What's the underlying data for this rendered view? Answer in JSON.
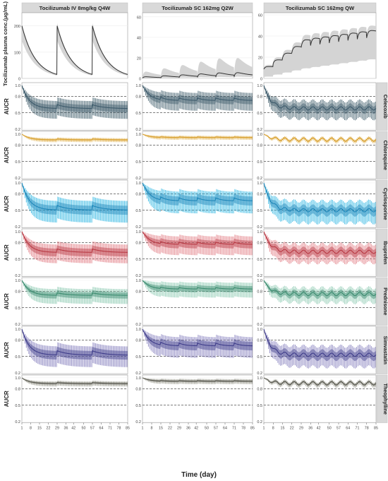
{
  "figure": {
    "x_axis_title": "Time (day)",
    "top_y_axis_title": "Tocilizumab plasma conc.(μg/mL)",
    "row_y_axis_title": "AUCR",
    "x_ticks": [
      1,
      8,
      15,
      22,
      29,
      36,
      42,
      50,
      57,
      64,
      71,
      78,
      85
    ],
    "x_range": [
      1,
      85
    ],
    "columns": [
      {
        "title": "Tocilizumab IV 8mg/kg Q4W",
        "dose_times": [
          1,
          29,
          57
        ],
        "conc_ylim": [
          0,
          250
        ],
        "conc_ticks": [
          0,
          100,
          200
        ],
        "peak": 200,
        "trough": 15,
        "peak_hi": 210
      },
      {
        "title": "Tocilizumab SC 162mg Q2W",
        "dose_times": [
          1,
          15,
          29,
          43,
          57,
          71
        ],
        "conc_ylim": [
          0,
          64
        ],
        "conc_ticks": [
          0,
          20,
          40,
          60
        ],
        "peak": 6,
        "trough": 1,
        "peak_hi": 58
      },
      {
        "title": "Tocilizumab SC 162mg QW",
        "dose_times": [
          1,
          8,
          15,
          22,
          29,
          36,
          43,
          50,
          57,
          64,
          71,
          78
        ],
        "conc_ylim": [
          0,
          62
        ],
        "conc_ticks": [
          0,
          20,
          40,
          60
        ],
        "peak": 33,
        "trough": 25,
        "peak_hi": 58
      }
    ],
    "aucr_ticks": [
      0.2,
      0.5,
      0.8,
      1.0
    ],
    "aucr_ylim": [
      0.18,
      1.05
    ],
    "dashed_reference_lines": [
      0.5,
      0.8
    ],
    "drugs": [
      {
        "name": "Celecoxib",
        "color": "#3d5a6b",
        "band_color": "#2f4f5e",
        "effect": [
          0.4,
          0.26,
          0.42
        ],
        "spread": 0.18
      },
      {
        "name": "Chloroquine",
        "color": "#d9a233",
        "band_color": "#e0b04a",
        "effect": [
          0.1,
          0.06,
          0.1
        ],
        "spread": 0.04
      },
      {
        "name": "Cyclosporine",
        "color": "#1f86b8",
        "band_color": "#1cb0e0",
        "effect": [
          0.47,
          0.31,
          0.5
        ],
        "spread": 0.22
      },
      {
        "name": "Ibuprofen",
        "color": "#b83a44",
        "band_color": "#e0727a",
        "effect": [
          0.36,
          0.22,
          0.37
        ],
        "spread": 0.19
      },
      {
        "name": "Prednisone",
        "color": "#3a8a6e",
        "band_color": "#7fc4a9",
        "effect": [
          0.26,
          0.15,
          0.25
        ],
        "spread": 0.15
      },
      {
        "name": "Simvastatin",
        "color": "#3f3d8a",
        "band_color": "#7b74b8",
        "effect": [
          0.45,
          0.29,
          0.47
        ],
        "spread": 0.21
      },
      {
        "name": "Theophylline",
        "color": "#5e5e55",
        "band_color": "#8c8c7e",
        "effect": [
          0.1,
          0.06,
          0.1
        ],
        "spread": 0.05
      }
    ]
  },
  "chart_data": {
    "type": "line",
    "title": "",
    "xlabel": "Time (day)",
    "ylabel_top": "Tocilizumab plasma conc.(μg/mL)",
    "ylabel_rows": "AUCR",
    "x": [
      1,
      8,
      15,
      22,
      29,
      36,
      42,
      50,
      57,
      64,
      71,
      78,
      85
    ],
    "facets_columns": [
      "Tocilizumab IV 8mg/kg Q4W",
      "Tocilizumab SC 162mg Q2W",
      "Tocilizumab SC 162mg QW"
    ],
    "facets_rows": [
      "Celecoxib",
      "Chloroquine",
      "Cyclosporine",
      "Ibuprofen",
      "Prednisone",
      "Simvastatin",
      "Theophylline"
    ],
    "series": [
      {
        "name": "Celecoxib",
        "median_aucr_at_day85": [
          0.6,
          0.74,
          0.58
        ]
      },
      {
        "name": "Chloroquine",
        "median_aucr_at_day85": [
          0.91,
          0.94,
          0.9
        ]
      },
      {
        "name": "Cyclosporine",
        "median_aucr_at_day85": [
          0.53,
          0.69,
          0.5
        ]
      },
      {
        "name": "Ibuprofen",
        "median_aucr_at_day85": [
          0.64,
          0.78,
          0.63
        ]
      },
      {
        "name": "Prednisone",
        "median_aucr_at_day85": [
          0.74,
          0.85,
          0.75
        ]
      },
      {
        "name": "Simvastatin",
        "median_aucr_at_day85": [
          0.55,
          0.71,
          0.53
        ]
      },
      {
        "name": "Theophylline",
        "median_aucr_at_day85": [
          0.9,
          0.94,
          0.9
        ]
      }
    ],
    "ylim_aucr": [
      0.2,
      1.0
    ],
    "grid": true
  }
}
